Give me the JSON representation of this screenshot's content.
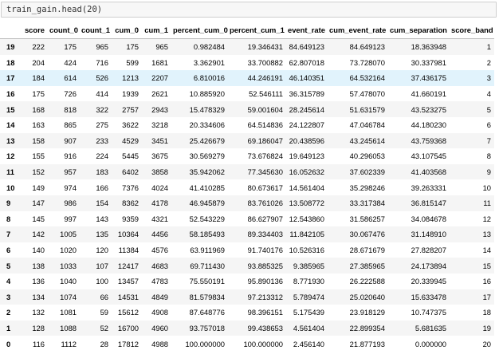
{
  "code_cell": {
    "code": "train_gain.head(20)"
  },
  "table": {
    "columns": [
      "",
      "score",
      "count_0",
      "count_1",
      "cum_0",
      "cum_1",
      "percent_cum_0",
      "percent_cum_1",
      "event_rate",
      "cum_event_rate",
      "cum_separation",
      "score_band"
    ],
    "hovered_row": 2,
    "rows": [
      [
        "19",
        "222",
        "175",
        "965",
        "175",
        "965",
        "0.982484",
        "19.346431",
        "84.649123",
        "84.649123",
        "18.363948",
        "1"
      ],
      [
        "18",
        "204",
        "424",
        "716",
        "599",
        "1681",
        "3.362901",
        "33.700882",
        "62.807018",
        "73.728070",
        "30.337981",
        "2"
      ],
      [
        "17",
        "184",
        "614",
        "526",
        "1213",
        "2207",
        "6.810016",
        "44.246191",
        "46.140351",
        "64.532164",
        "37.436175",
        "3"
      ],
      [
        "16",
        "175",
        "726",
        "414",
        "1939",
        "2621",
        "10.885920",
        "52.546111",
        "36.315789",
        "57.478070",
        "41.660191",
        "4"
      ],
      [
        "15",
        "168",
        "818",
        "322",
        "2757",
        "2943",
        "15.478329",
        "59.001604",
        "28.245614",
        "51.631579",
        "43.523275",
        "5"
      ],
      [
        "14",
        "163",
        "865",
        "275",
        "3622",
        "3218",
        "20.334606",
        "64.514836",
        "24.122807",
        "47.046784",
        "44.180230",
        "6"
      ],
      [
        "13",
        "158",
        "907",
        "233",
        "4529",
        "3451",
        "25.426679",
        "69.186047",
        "20.438596",
        "43.245614",
        "43.759368",
        "7"
      ],
      [
        "12",
        "155",
        "916",
        "224",
        "5445",
        "3675",
        "30.569279",
        "73.676824",
        "19.649123",
        "40.296053",
        "43.107545",
        "8"
      ],
      [
        "11",
        "152",
        "957",
        "183",
        "6402",
        "3858",
        "35.942062",
        "77.345630",
        "16.052632",
        "37.602339",
        "41.403568",
        "9"
      ],
      [
        "10",
        "149",
        "974",
        "166",
        "7376",
        "4024",
        "41.410285",
        "80.673617",
        "14.561404",
        "35.298246",
        "39.263331",
        "10"
      ],
      [
        "9",
        "147",
        "986",
        "154",
        "8362",
        "4178",
        "46.945879",
        "83.761026",
        "13.508772",
        "33.317384",
        "36.815147",
        "11"
      ],
      [
        "8",
        "145",
        "997",
        "143",
        "9359",
        "4321",
        "52.543229",
        "86.627907",
        "12.543860",
        "31.586257",
        "34.084678",
        "12"
      ],
      [
        "7",
        "142",
        "1005",
        "135",
        "10364",
        "4456",
        "58.185493",
        "89.334403",
        "11.842105",
        "30.067476",
        "31.148910",
        "13"
      ],
      [
        "6",
        "140",
        "1020",
        "120",
        "11384",
        "4576",
        "63.911969",
        "91.740176",
        "10.526316",
        "28.671679",
        "27.828207",
        "14"
      ],
      [
        "5",
        "138",
        "1033",
        "107",
        "12417",
        "4683",
        "69.711430",
        "93.885325",
        "9.385965",
        "27.385965",
        "24.173894",
        "15"
      ],
      [
        "4",
        "136",
        "1040",
        "100",
        "13457",
        "4783",
        "75.550191",
        "95.890136",
        "8.771930",
        "26.222588",
        "20.339945",
        "16"
      ],
      [
        "3",
        "134",
        "1074",
        "66",
        "14531",
        "4849",
        "81.579834",
        "97.213312",
        "5.789474",
        "25.020640",
        "15.633478",
        "17"
      ],
      [
        "2",
        "132",
        "1081",
        "59",
        "15612",
        "4908",
        "87.648776",
        "98.396151",
        "5.175439",
        "23.918129",
        "10.747375",
        "18"
      ],
      [
        "1",
        "128",
        "1088",
        "52",
        "16700",
        "4960",
        "93.757018",
        "99.438653",
        "4.561404",
        "22.899354",
        "5.681635",
        "19"
      ],
      [
        "0",
        "116",
        "1112",
        "28",
        "17812",
        "4988",
        "100.000000",
        "100.000000",
        "2.456140",
        "21.877193",
        "0.000000",
        "20"
      ]
    ]
  }
}
